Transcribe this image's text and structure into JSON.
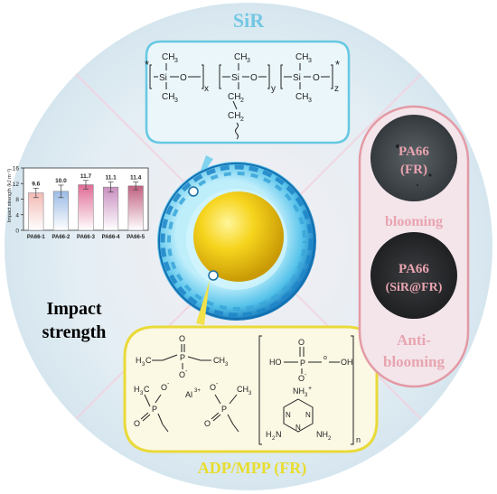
{
  "title_sir": "SiR",
  "title_fr": "ADP/MPP (FR)",
  "impact_label_line1": "Impact",
  "impact_label_line2": "strength",
  "sir_structure": {
    "star": "*",
    "ch3": "CH",
    "ch3_sub": "3",
    "si": "Si",
    "o": "O",
    "x": "x",
    "y": "y",
    "z": "z",
    "ch2": "CH",
    "ch2_sub": "2"
  },
  "fr_structure": {
    "p": "P",
    "o": "O",
    "o_minus": "O",
    "h3c": "H",
    "ch3": "CH",
    "al": "Al",
    "al_charge": "3+",
    "ho": "HO",
    "oh": "OH",
    "nh3": "NH",
    "nh3_charge": "+",
    "n": "N",
    "h2n": "H",
    "nh2": "NH",
    "sub2": "2",
    "sub3": "3",
    "n_repeat": "n"
  },
  "panel_right": {
    "top_label_1": "PA66",
    "top_label_2": "(FR)",
    "mid_label": "blooming",
    "bottom_label_1": "PA66",
    "bottom_label_2": "(SiR@FR)",
    "anti_label_1": "Anti-",
    "anti_label_2": "blooming"
  },
  "chart_data": {
    "type": "bar",
    "categories": [
      "PA66-1",
      "PA66-2",
      "PA66-3",
      "PA66-4",
      "PA66-5"
    ],
    "values": [
      9.6,
      10.0,
      11.7,
      11.1,
      11.4
    ],
    "value_labels": [
      "9.6",
      "10.0",
      "11.7",
      "11.1",
      "11.4"
    ],
    "errors": [
      1.2,
      1.6,
      1.1,
      1.3,
      1.0
    ],
    "ylabel": "Impact strength (kJ m⁻²)",
    "ylim": [
      0,
      16
    ],
    "yticks": [
      "0",
      "4",
      "8",
      "12",
      "16"
    ],
    "colors_top": [
      "#f6c9c9",
      "#a9c4e6",
      "#e3799f",
      "#d39cc4",
      "#c76b8a"
    ],
    "colors_bottom": [
      "#ffffff",
      "#ffffff",
      "#ffffff",
      "#ffffff",
      "#ffffff"
    ]
  }
}
